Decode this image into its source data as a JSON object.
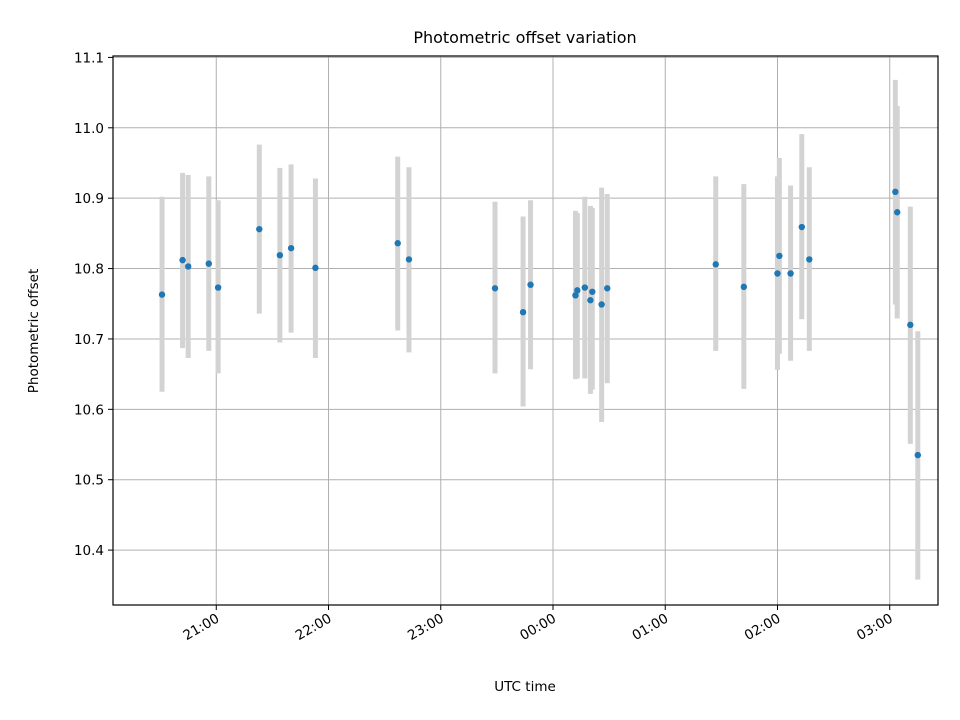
{
  "chart_data": {
    "type": "scatter",
    "title": "Photometric offset variation",
    "xlabel": "UTC time",
    "ylabel": "Photometric offset",
    "grid": true,
    "xlim_hours": [
      20.08,
      27.43
    ],
    "ylim": [
      10.322,
      11.102
    ],
    "x_ticks": [
      {
        "hour": 21,
        "label": "21:00"
      },
      {
        "hour": 22,
        "label": "22:00"
      },
      {
        "hour": 23,
        "label": "23:00"
      },
      {
        "hour": 24,
        "label": "00:00"
      },
      {
        "hour": 25,
        "label": "01:00"
      },
      {
        "hour": 26,
        "label": "02:00"
      },
      {
        "hour": 27,
        "label": "03:00"
      }
    ],
    "y_ticks": [
      {
        "value": 10.4,
        "label": "10.4"
      },
      {
        "value": 10.5,
        "label": "10.5"
      },
      {
        "value": 10.6,
        "label": "10.6"
      },
      {
        "value": 10.7,
        "label": "10.7"
      },
      {
        "value": 10.8,
        "label": "10.8"
      },
      {
        "value": 10.9,
        "label": "10.9"
      },
      {
        "value": 11.0,
        "label": "11.0"
      },
      {
        "value": 11.1,
        "label": "11.1"
      }
    ],
    "colors": {
      "marker": "#1f77b4",
      "errorbar": "#d3d3d3",
      "grid": "#b0b0b0"
    },
    "points": [
      {
        "t": "20:31",
        "y": 10.763,
        "ylow": 10.625,
        "yhigh": 10.902
      },
      {
        "t": "20:42",
        "y": 10.812,
        "ylow": 10.687,
        "yhigh": 10.936
      },
      {
        "t": "20:45",
        "y": 10.803,
        "ylow": 10.673,
        "yhigh": 10.933
      },
      {
        "t": "20:56",
        "y": 10.807,
        "ylow": 10.683,
        "yhigh": 10.931
      },
      {
        "t": "21:01",
        "y": 10.773,
        "ylow": 10.651,
        "yhigh": 10.897
      },
      {
        "t": "21:23",
        "y": 10.856,
        "ylow": 10.736,
        "yhigh": 10.976
      },
      {
        "t": "21:34",
        "y": 10.819,
        "ylow": 10.695,
        "yhigh": 10.943
      },
      {
        "t": "21:40",
        "y": 10.829,
        "ylow": 10.709,
        "yhigh": 10.948
      },
      {
        "t": "21:53",
        "y": 10.801,
        "ylow": 10.673,
        "yhigh": 10.928
      },
      {
        "t": "22:37",
        "y": 10.836,
        "ylow": 10.712,
        "yhigh": 10.959
      },
      {
        "t": "22:43",
        "y": 10.813,
        "ylow": 10.681,
        "yhigh": 10.944
      },
      {
        "t": "23:29",
        "y": 10.772,
        "ylow": 10.651,
        "yhigh": 10.895
      },
      {
        "t": "23:44",
        "y": 10.738,
        "ylow": 10.604,
        "yhigh": 10.874
      },
      {
        "t": "23:48",
        "y": 10.777,
        "ylow": 10.657,
        "yhigh": 10.897
      },
      {
        "t": "00:12",
        "y": 10.762,
        "ylow": 10.643,
        "yhigh": 10.882
      },
      {
        "t": "00:13",
        "y": 10.769,
        "ylow": 10.644,
        "yhigh": 10.879
      },
      {
        "t": "00:17",
        "y": 10.773,
        "ylow": 10.644,
        "yhigh": 10.902
      },
      {
        "t": "00:20",
        "y": 10.755,
        "ylow": 10.622,
        "yhigh": 10.889
      },
      {
        "t": "00:21",
        "y": 10.767,
        "ylow": 10.628,
        "yhigh": 10.886
      },
      {
        "t": "00:26",
        "y": 10.749,
        "ylow": 10.582,
        "yhigh": 10.915
      },
      {
        "t": "00:29",
        "y": 10.772,
        "ylow": 10.637,
        "yhigh": 10.906
      },
      {
        "t": "01:27",
        "y": 10.806,
        "ylow": 10.683,
        "yhigh": 10.931
      },
      {
        "t": "01:42",
        "y": 10.774,
        "ylow": 10.629,
        "yhigh": 10.92
      },
      {
        "t": "02:00",
        "y": 10.793,
        "ylow": 10.656,
        "yhigh": 10.931
      },
      {
        "t": "02:01",
        "y": 10.818,
        "ylow": 10.679,
        "yhigh": 10.957
      },
      {
        "t": "02:07",
        "y": 10.793,
        "ylow": 10.669,
        "yhigh": 10.918
      },
      {
        "t": "02:13",
        "y": 10.859,
        "ylow": 10.728,
        "yhigh": 10.991
      },
      {
        "t": "02:17",
        "y": 10.813,
        "ylow": 10.683,
        "yhigh": 10.944
      },
      {
        "t": "03:03",
        "y": 10.909,
        "ylow": 10.749,
        "yhigh": 11.068
      },
      {
        "t": "03:04",
        "y": 10.88,
        "ylow": 10.729,
        "yhigh": 11.031
      },
      {
        "t": "03:11",
        "y": 10.72,
        "ylow": 10.551,
        "yhigh": 10.888
      },
      {
        "t": "03:15",
        "y": 10.535,
        "ylow": 10.358,
        "yhigh": 10.711
      }
    ]
  }
}
